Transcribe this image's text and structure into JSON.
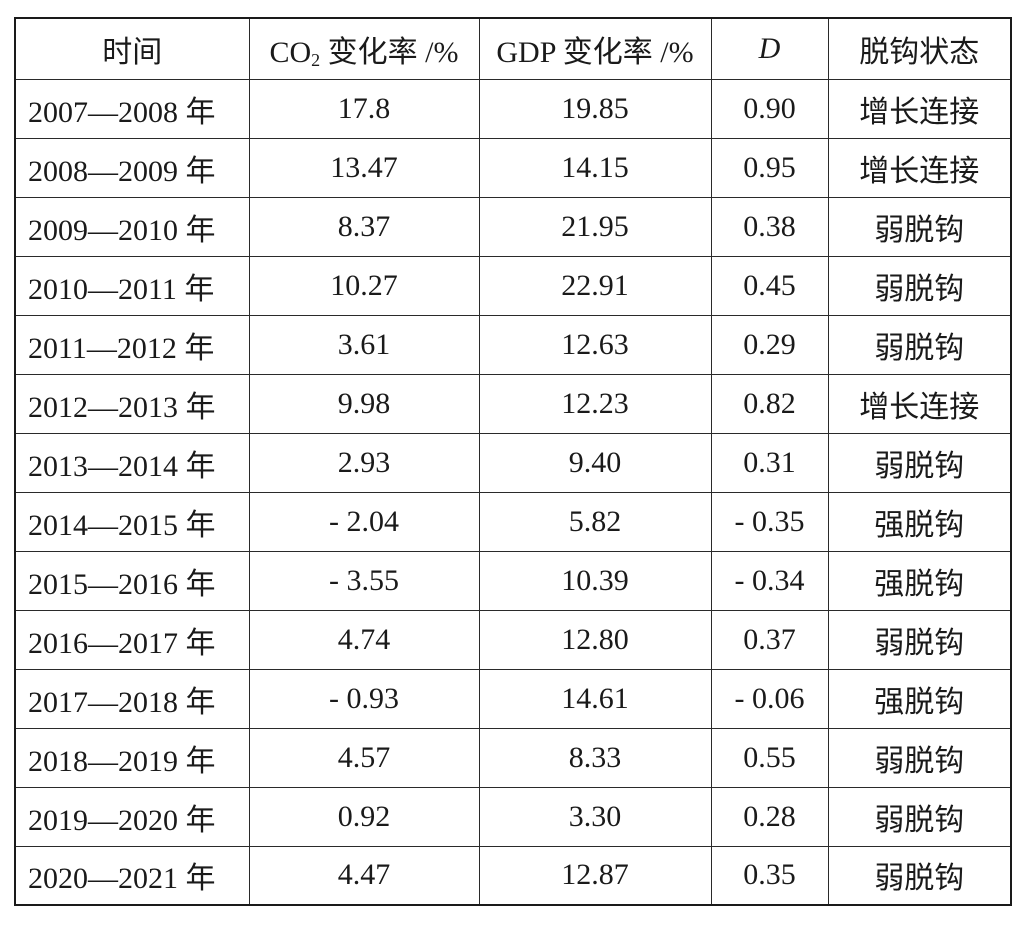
{
  "table": {
    "headers": {
      "period": "时间",
      "co2_main": "CO",
      "co2_sub": "2",
      "co2_rest": " 变化率 /%",
      "gdp": "GDP 变化率 /%",
      "d": "D",
      "status": "脱钩状态"
    },
    "rows": [
      {
        "period": "2007—2008 年",
        "co2": "17.8",
        "gdp": "19.85",
        "d": "0.90",
        "status": "增长连接"
      },
      {
        "period": "2008—2009 年",
        "co2": "13.47",
        "gdp": "14.15",
        "d": "0.95",
        "status": "增长连接"
      },
      {
        "period": "2009—2010 年",
        "co2": "8.37",
        "gdp": "21.95",
        "d": "0.38",
        "status": "弱脱钩"
      },
      {
        "period": "2010—2011 年",
        "co2": "10.27",
        "gdp": "22.91",
        "d": "0.45",
        "status": "弱脱钩"
      },
      {
        "period": "2011—2012 年",
        "co2": "3.61",
        "gdp": "12.63",
        "d": "0.29",
        "status": "弱脱钩"
      },
      {
        "period": "2012—2013 年",
        "co2": "9.98",
        "gdp": "12.23",
        "d": "0.82",
        "status": "增长连接"
      },
      {
        "period": "2013—2014 年",
        "co2": "2.93",
        "gdp": "9.40",
        "d": "0.31",
        "status": "弱脱钩"
      },
      {
        "period": "2014—2015 年",
        "co2": "- 2.04",
        "gdp": "5.82",
        "d": "- 0.35",
        "status": "强脱钩"
      },
      {
        "period": "2015—2016 年",
        "co2": "- 3.55",
        "gdp": "10.39",
        "d": "- 0.34",
        "status": "强脱钩"
      },
      {
        "period": "2016—2017 年",
        "co2": "4.74",
        "gdp": "12.80",
        "d": "0.37",
        "status": "弱脱钩"
      },
      {
        "period": "2017—2018 年",
        "co2": "- 0.93",
        "gdp": "14.61",
        "d": "- 0.06",
        "status": "强脱钩"
      },
      {
        "period": "2018—2019 年",
        "co2": "4.57",
        "gdp": "8.33",
        "d": "0.55",
        "status": "弱脱钩"
      },
      {
        "period": "2019—2020 年",
        "co2": "0.92",
        "gdp": "3.30",
        "d": "0.28",
        "status": "弱脱钩"
      },
      {
        "period": "2020—2021 年",
        "co2": "4.47",
        "gdp": "12.87",
        "d": "0.35",
        "status": "弱脱钩"
      }
    ]
  }
}
